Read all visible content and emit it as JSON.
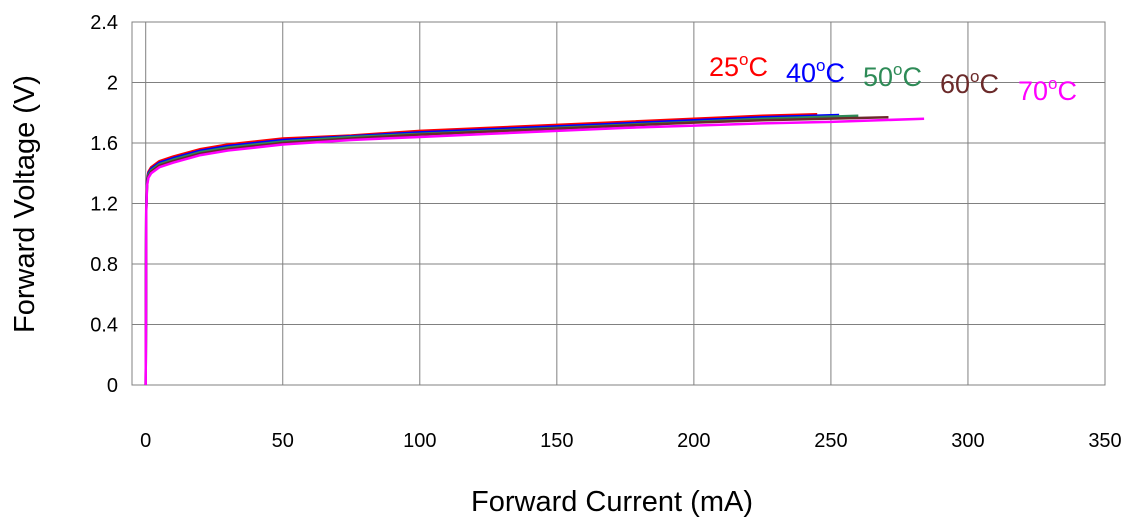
{
  "chart_data": {
    "type": "line",
    "title": "",
    "xlabel": "Forward Current (mA)",
    "ylabel": "Forward Voltage (V)",
    "xlim": [
      -5,
      350
    ],
    "ylim": [
      0,
      2.4
    ],
    "xticks": [
      0,
      50,
      100,
      150,
      200,
      250,
      300,
      350
    ],
    "yticks": [
      0,
      0.4,
      0.8,
      1.2,
      1.6,
      2,
      2.4
    ],
    "x_tick_labels": [
      "0",
      "50",
      "100",
      "150",
      "200",
      "250",
      "300",
      "350"
    ],
    "y_tick_labels": [
      "0",
      "0.4",
      "0.8",
      "1.2",
      "1.6",
      "2",
      "2.4"
    ],
    "grid": true,
    "legend": "inline labels near line ends, top-right",
    "series": [
      {
        "name": "25°C",
        "label_main": "25",
        "label_sup": "o",
        "label_unit": "C",
        "color": "#ff0000",
        "x": [
          0,
          0.2,
          0.5,
          1,
          2,
          5,
          10,
          20,
          30,
          50,
          75,
          100,
          125,
          150,
          175,
          200,
          225,
          245
        ],
        "y": [
          0,
          1.2,
          1.36,
          1.41,
          1.44,
          1.48,
          1.51,
          1.56,
          1.59,
          1.63,
          1.65,
          1.68,
          1.7,
          1.72,
          1.74,
          1.76,
          1.78,
          1.79
        ]
      },
      {
        "name": "40°C",
        "label_main": "40",
        "label_sup": "o",
        "label_unit": "C",
        "color": "#0000ff",
        "x": [
          0,
          0.2,
          0.5,
          1,
          2,
          5,
          10,
          20,
          30,
          50,
          75,
          100,
          125,
          150,
          175,
          200,
          225,
          253
        ],
        "y": [
          0,
          1.18,
          1.35,
          1.4,
          1.43,
          1.47,
          1.5,
          1.55,
          1.58,
          1.62,
          1.645,
          1.67,
          1.69,
          1.71,
          1.73,
          1.75,
          1.77,
          1.785
        ]
      },
      {
        "name": "50°C",
        "label_main": "50",
        "label_sup": "o",
        "label_unit": "C",
        "color": "#2e8b57",
        "x": [
          0,
          0.2,
          0.5,
          1,
          2,
          5,
          10,
          20,
          30,
          50,
          75,
          100,
          125,
          150,
          175,
          200,
          225,
          260
        ],
        "y": [
          0,
          1.17,
          1.34,
          1.39,
          1.42,
          1.46,
          1.49,
          1.54,
          1.57,
          1.61,
          1.64,
          1.66,
          1.68,
          1.7,
          1.72,
          1.74,
          1.76,
          1.78
        ]
      },
      {
        "name": "60°C",
        "label_main": "60",
        "label_sup": "o",
        "label_unit": "C",
        "color": "#6b2a2a",
        "x": [
          0,
          0.2,
          0.5,
          1,
          2,
          5,
          10,
          20,
          30,
          50,
          75,
          100,
          125,
          150,
          175,
          200,
          225,
          271
        ],
        "y": [
          0,
          1.16,
          1.33,
          1.38,
          1.41,
          1.45,
          1.48,
          1.53,
          1.56,
          1.6,
          1.63,
          1.655,
          1.675,
          1.695,
          1.715,
          1.735,
          1.75,
          1.77
        ]
      },
      {
        "name": "70°C",
        "label_main": "70",
        "label_sup": "o",
        "label_unit": "C",
        "color": "#ff00ff",
        "x": [
          0,
          0.2,
          0.5,
          1,
          2,
          5,
          10,
          20,
          30,
          50,
          75,
          100,
          125,
          150,
          175,
          200,
          225,
          250,
          284
        ],
        "y": [
          0,
          1.15,
          1.32,
          1.37,
          1.4,
          1.44,
          1.47,
          1.52,
          1.55,
          1.59,
          1.62,
          1.64,
          1.66,
          1.68,
          1.7,
          1.715,
          1.73,
          1.74,
          1.76
        ]
      }
    ]
  }
}
